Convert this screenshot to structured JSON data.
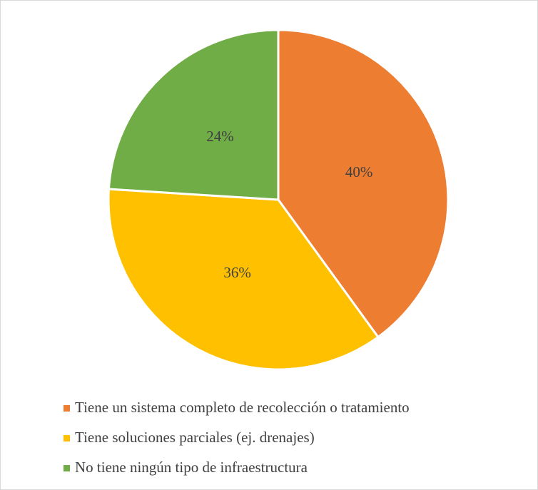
{
  "chart_data": {
    "type": "pie",
    "categories": [
      "Tiene un sistema completo de recolección o tratamiento",
      "Tiene soluciones parciales (ej. drenajes)",
      "No tiene ningún tipo de infraestructura"
    ],
    "values": [
      40,
      36,
      24
    ],
    "value_labels": [
      "40%",
      "36%",
      "24%"
    ],
    "colors": [
      "#ed7d31",
      "#ffc000",
      "#70ad47"
    ]
  }
}
